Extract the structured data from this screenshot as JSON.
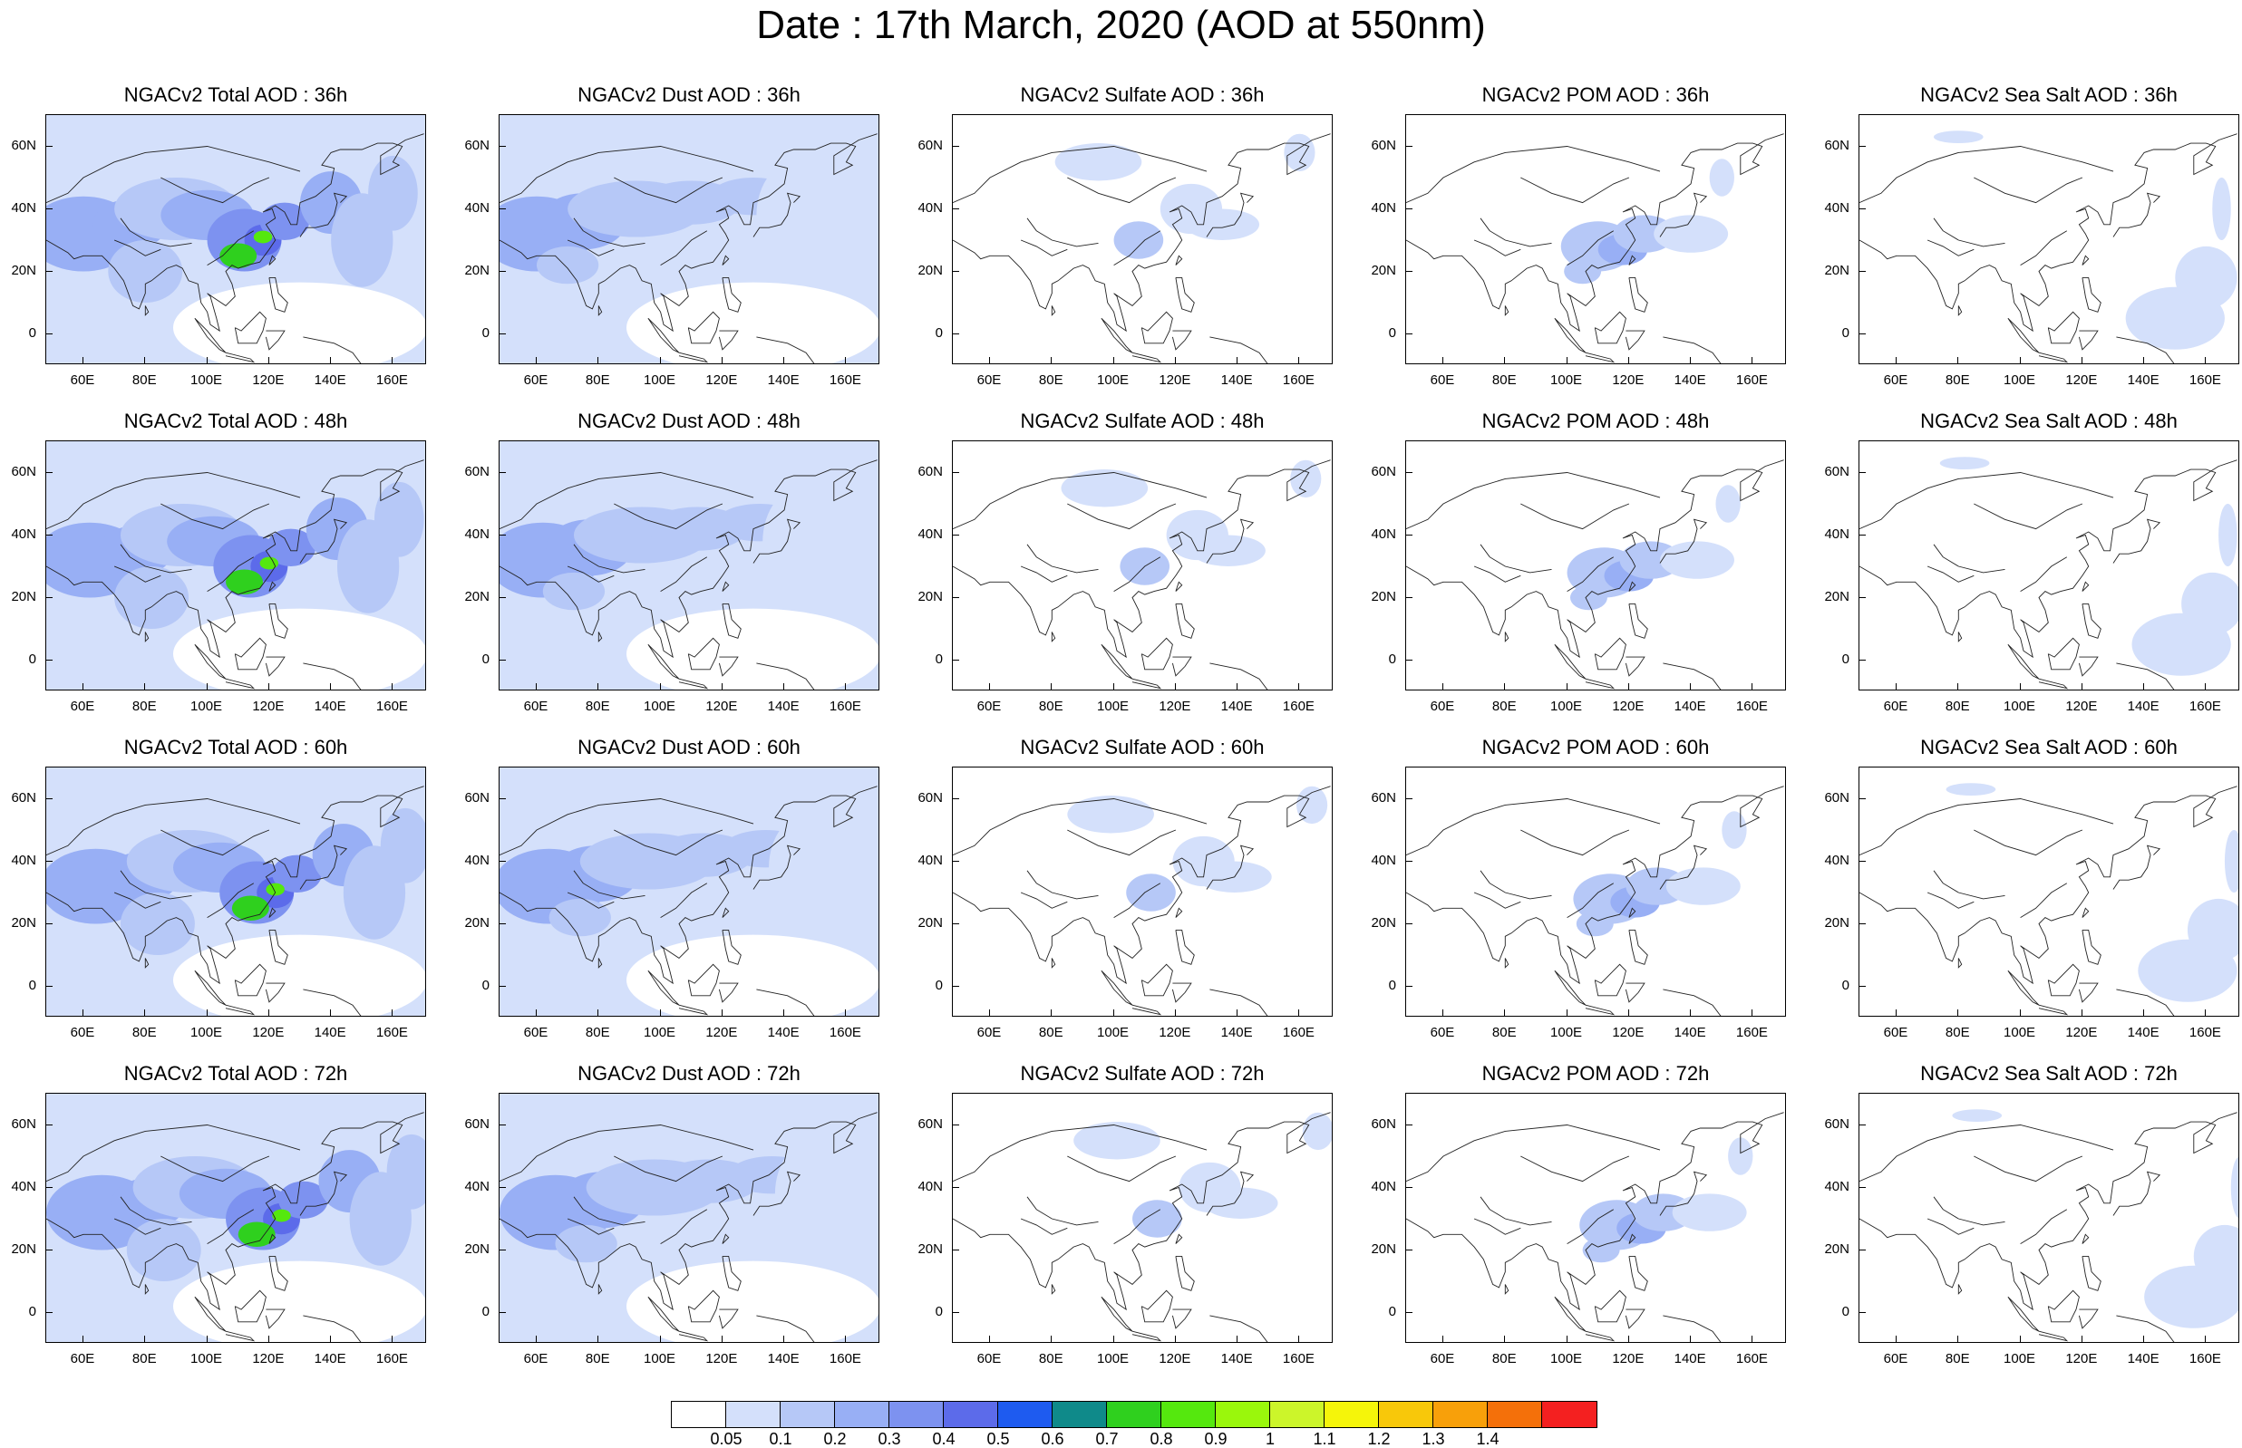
{
  "title": "Date : 17th March, 2020 (AOD at 550nm)",
  "lat_labels": [
    "60N",
    "40N",
    "20N",
    "0"
  ],
  "lon_labels": [
    "60E",
    "80E",
    "100E",
    "120E",
    "140E",
    "160E"
  ],
  "rows": [
    {
      "panels": [
        {
          "title": "NGACv2 Total AOD : 36h",
          "type": "total"
        },
        {
          "title": "NGACv2 Dust AOD : 36h",
          "type": "dust"
        },
        {
          "title": "NGACv2 Sulfate AOD : 36h",
          "type": "sulfate"
        },
        {
          "title": "NGACv2 POM AOD : 36h",
          "type": "pom"
        },
        {
          "title": "NGACv2 Sea Salt AOD : 36h",
          "type": "seasalt"
        }
      ]
    },
    {
      "panels": [
        {
          "title": "NGACv2 Total AOD : 48h",
          "type": "total"
        },
        {
          "title": "NGACv2 Dust AOD : 48h",
          "type": "dust"
        },
        {
          "title": "NGACv2 Sulfate AOD : 48h",
          "type": "sulfate"
        },
        {
          "title": "NGACv2 POM AOD : 48h",
          "type": "pom"
        },
        {
          "title": "NGACv2 Sea Salt AOD : 48h",
          "type": "seasalt"
        }
      ]
    },
    {
      "panels": [
        {
          "title": "NGACv2 Total AOD : 60h",
          "type": "total"
        },
        {
          "title": "NGACv2 Dust AOD : 60h",
          "type": "dust"
        },
        {
          "title": "NGACv2 Sulfate AOD : 60h",
          "type": "sulfate"
        },
        {
          "title": "NGACv2 POM AOD : 60h",
          "type": "pom"
        },
        {
          "title": "NGACv2 Sea Salt AOD : 60h",
          "type": "seasalt"
        }
      ]
    },
    {
      "panels": [
        {
          "title": "NGACv2 Total AOD : 72h",
          "type": "total"
        },
        {
          "title": "NGACv2 Dust AOD : 72h",
          "type": "dust"
        },
        {
          "title": "NGACv2 Sulfate AOD : 72h",
          "type": "sulfate"
        },
        {
          "title": "NGACv2 POM AOD : 72h",
          "type": "pom"
        },
        {
          "title": "NGACv2 Sea Salt  AOD : 72h",
          "type": "seasalt"
        }
      ]
    }
  ],
  "colorbar": {
    "colors": [
      "#ffffff",
      "#d4e0fb",
      "#b6c8f7",
      "#98aff5",
      "#7d92f0",
      "#5c6bea",
      "#1e5bf0",
      "#0f8a8a",
      "#2fd01e",
      "#55e80e",
      "#9af70c",
      "#ccf52a",
      "#f5f50a",
      "#f8c80a",
      "#f8a00a",
      "#f4700a",
      "#f42020"
    ],
    "labels": [
      "0.05",
      "0.1",
      "0.2",
      "0.3",
      "0.4",
      "0.5",
      "0.6",
      "0.7",
      "0.8",
      "0.9",
      "1",
      "1.1",
      "1.2",
      "1.3",
      "1.4"
    ]
  }
}
